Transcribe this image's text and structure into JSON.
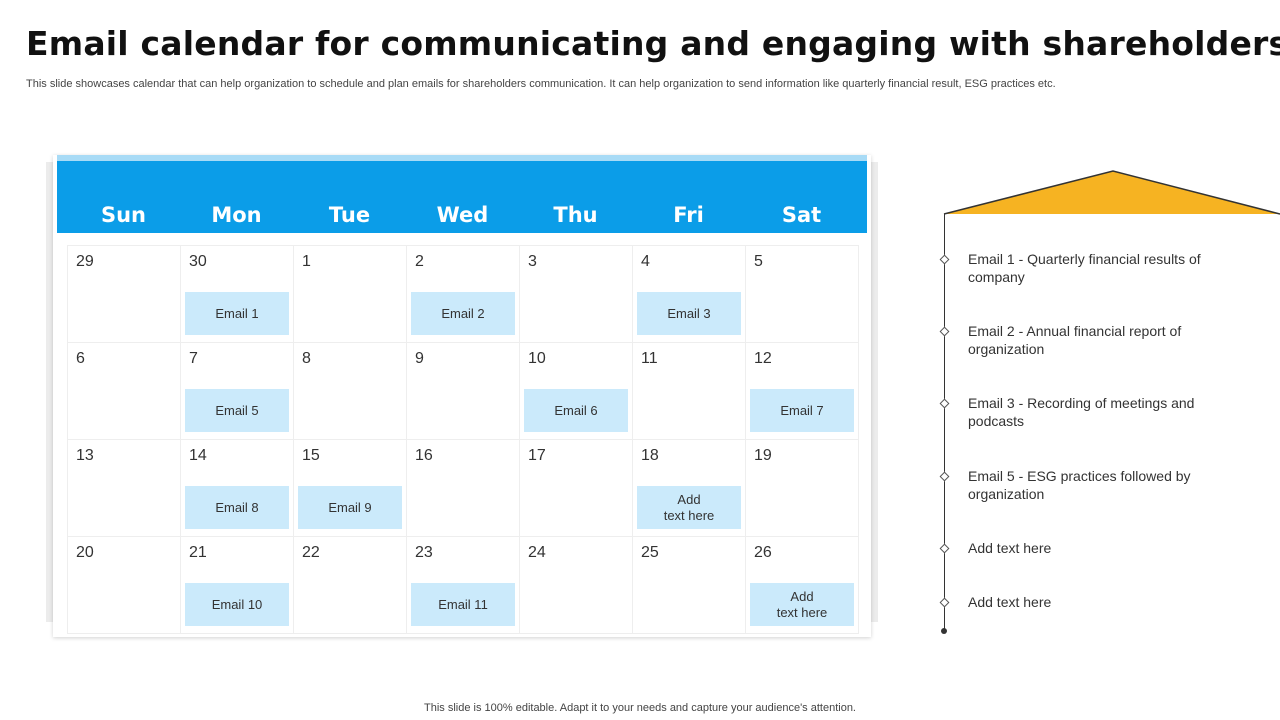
{
  "header": {
    "title": "Email calendar for communicating and engaging with shareholders",
    "subtitle": "This slide showcases calendar that can help organization to schedule and plan emails for shareholders communication. It can help organization to send information like quarterly financial result, ESG practices etc."
  },
  "calendar": {
    "days": [
      "Sun",
      "Mon",
      "Tue",
      "Wed",
      "Thu",
      "Fri",
      "Sat"
    ],
    "weeks": [
      [
        {
          "date": "29",
          "tag": ""
        },
        {
          "date": "30",
          "tag": "Email 1"
        },
        {
          "date": "1",
          "tag": ""
        },
        {
          "date": "2",
          "tag": "Email 2"
        },
        {
          "date": "3",
          "tag": ""
        },
        {
          "date": "4",
          "tag": "Email 3"
        },
        {
          "date": "5",
          "tag": ""
        }
      ],
      [
        {
          "date": "6",
          "tag": ""
        },
        {
          "date": "7",
          "tag": "Email 5"
        },
        {
          "date": "8",
          "tag": ""
        },
        {
          "date": "9",
          "tag": ""
        },
        {
          "date": "10",
          "tag": "Email 6"
        },
        {
          "date": "11",
          "tag": ""
        },
        {
          "date": "12",
          "tag": "Email 7"
        }
      ],
      [
        {
          "date": "13",
          "tag": ""
        },
        {
          "date": "14",
          "tag": "Email 8"
        },
        {
          "date": "15",
          "tag": "Email 9"
        },
        {
          "date": "16",
          "tag": ""
        },
        {
          "date": "17",
          "tag": ""
        },
        {
          "date": "18",
          "tag": "Add\ntext here"
        },
        {
          "date": "19",
          "tag": ""
        }
      ],
      [
        {
          "date": "20",
          "tag": ""
        },
        {
          "date": "21",
          "tag": "Email 10"
        },
        {
          "date": "22",
          "tag": ""
        },
        {
          "date": "23",
          "tag": "Email 11"
        },
        {
          "date": "24",
          "tag": ""
        },
        {
          "date": "25",
          "tag": ""
        },
        {
          "date": "26",
          "tag": "Add\ntext here"
        }
      ]
    ]
  },
  "legend": {
    "items": [
      "Email 1 - Quarterly financial results of company",
      "Email 2 - Annual financial report of organization",
      "Email 3 - Recording of meetings and podcasts",
      "Email 5 - ESG practices followed by organization",
      "Add text here",
      "Add text here"
    ]
  },
  "footer": {
    "text": "This slide is 100% editable. Adapt it to your needs and capture your audience's attention."
  },
  "colors": {
    "header_blue": "#0b9de8",
    "tag_blue": "#cbeafb",
    "accent_yellow": "#f6b322"
  }
}
